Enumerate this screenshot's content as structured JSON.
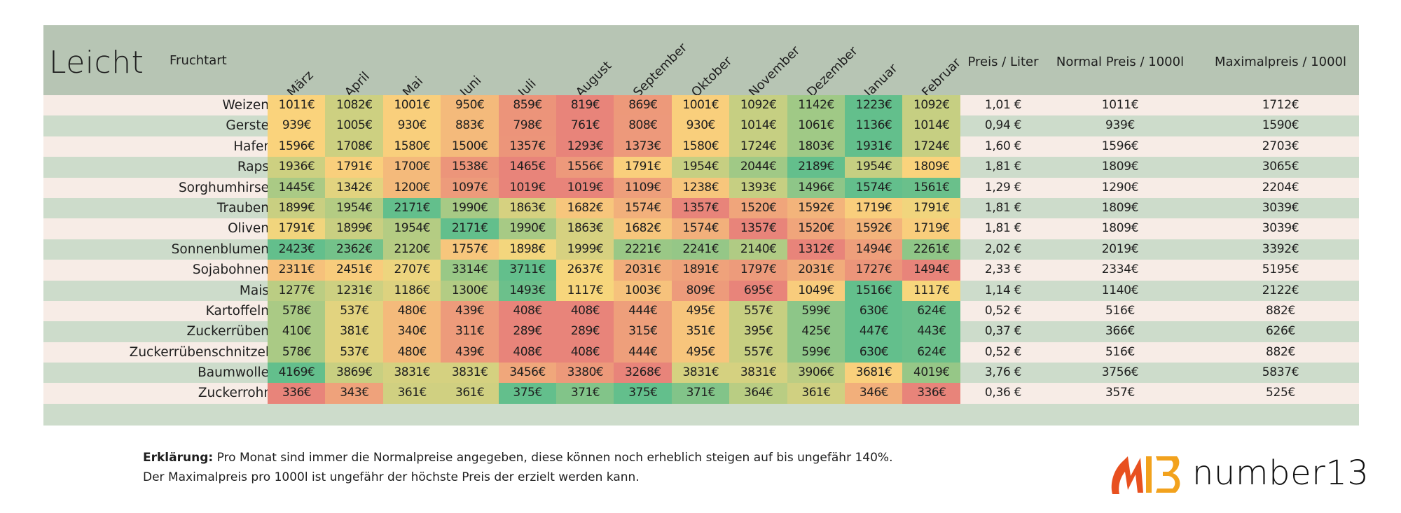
{
  "title": "Leicht",
  "crop_column_header": "Fruchtart",
  "months": [
    "März",
    "April",
    "Mai",
    "Juni",
    "Juli",
    "August",
    "September",
    "Oktober",
    "November",
    "Dezember",
    "Januar",
    "Februar"
  ],
  "extra_columns": [
    "Preis / Liter",
    "Normal Preis / 1000l",
    "Maximalpreis / 1000l"
  ],
  "rows": [
    {
      "crop": "Weizen",
      "prices": [
        "1011€",
        "1082€",
        "1001€",
        "950€",
        "859€",
        "819€",
        "869€",
        "1001€",
        "1092€",
        "1142€",
        "1223€",
        "1092€"
      ],
      "price_per_liter": "1,01 €",
      "normal_price": "1011€",
      "max_price": "1712€"
    },
    {
      "crop": "Gerste",
      "prices": [
        "939€",
        "1005€",
        "930€",
        "883€",
        "798€",
        "761€",
        "808€",
        "930€",
        "1014€",
        "1061€",
        "1136€",
        "1014€"
      ],
      "price_per_liter": "0,94 €",
      "normal_price": "939€",
      "max_price": "1590€"
    },
    {
      "crop": "Hafer",
      "prices": [
        "1596€",
        "1708€",
        "1580€",
        "1500€",
        "1357€",
        "1293€",
        "1373€",
        "1580€",
        "1724€",
        "1803€",
        "1931€",
        "1724€"
      ],
      "price_per_liter": "1,60 €",
      "normal_price": "1596€",
      "max_price": "2703€"
    },
    {
      "crop": "Raps",
      "prices": [
        "1936€",
        "1791€",
        "1700€",
        "1538€",
        "1465€",
        "1556€",
        "1791€",
        "1954€",
        "2044€",
        "2189€",
        "1954€",
        "1809€"
      ],
      "price_per_liter": "1,81 €",
      "normal_price": "1809€",
      "max_price": "3065€"
    },
    {
      "crop": "Sorghumhirse",
      "prices": [
        "1445€",
        "1342€",
        "1200€",
        "1097€",
        "1019€",
        "1019€",
        "1109€",
        "1238€",
        "1393€",
        "1496€",
        "1574€",
        "1561€"
      ],
      "price_per_liter": "1,29 €",
      "normal_price": "1290€",
      "max_price": "2204€"
    },
    {
      "crop": "Trauben",
      "prices": [
        "1899€",
        "1954€",
        "2171€",
        "1990€",
        "1863€",
        "1682€",
        "1574€",
        "1357€",
        "1520€",
        "1592€",
        "1719€",
        "1791€"
      ],
      "price_per_liter": "1,81 €",
      "normal_price": "1809€",
      "max_price": "3039€"
    },
    {
      "crop": "Oliven",
      "prices": [
        "1791€",
        "1899€",
        "1954€",
        "2171€",
        "1990€",
        "1863€",
        "1682€",
        "1574€",
        "1357€",
        "1520€",
        "1592€",
        "1719€"
      ],
      "price_per_liter": "1,81 €",
      "normal_price": "1809€",
      "max_price": "3039€"
    },
    {
      "crop": "Sonnenblumen",
      "prices": [
        "2423€",
        "2362€",
        "2120€",
        "1757€",
        "1898€",
        "1999€",
        "2221€",
        "2241€",
        "2140€",
        "1312€",
        "1494€",
        "2261€"
      ],
      "price_per_liter": "2,02 €",
      "normal_price": "2019€",
      "max_price": "3392€"
    },
    {
      "crop": "Sojabohnen",
      "prices": [
        "2311€",
        "2451€",
        "2707€",
        "3314€",
        "3711€",
        "2637€",
        "2031€",
        "1891€",
        "1797€",
        "2031€",
        "1727€",
        "1494€"
      ],
      "price_per_liter": "2,33 €",
      "normal_price": "2334€",
      "max_price": "5195€"
    },
    {
      "crop": "Mais",
      "prices": [
        "1277€",
        "1231€",
        "1186€",
        "1300€",
        "1493€",
        "1117€",
        "1003€",
        "809€",
        "695€",
        "1049€",
        "1516€",
        "1117€"
      ],
      "price_per_liter": "1,14 €",
      "normal_price": "1140€",
      "max_price": "2122€"
    },
    {
      "crop": "Kartoffeln",
      "prices": [
        "578€",
        "537€",
        "480€",
        "439€",
        "408€",
        "408€",
        "444€",
        "495€",
        "557€",
        "599€",
        "630€",
        "624€"
      ],
      "price_per_liter": "0,52 €",
      "normal_price": "516€",
      "max_price": "882€"
    },
    {
      "crop": "Zuckerrüben",
      "prices": [
        "410€",
        "381€",
        "340€",
        "311€",
        "289€",
        "289€",
        "315€",
        "351€",
        "395€",
        "425€",
        "447€",
        "443€"
      ],
      "price_per_liter": "0,37 €",
      "normal_price": "366€",
      "max_price": "626€"
    },
    {
      "crop": "Zuckerrübenschnitzel",
      "prices": [
        "578€",
        "537€",
        "480€",
        "439€",
        "408€",
        "408€",
        "444€",
        "495€",
        "557€",
        "599€",
        "630€",
        "624€"
      ],
      "price_per_liter": "0,52 €",
      "normal_price": "516€",
      "max_price": "882€"
    },
    {
      "crop": "Baumwolle",
      "prices": [
        "4169€",
        "3869€",
        "3831€",
        "3831€",
        "3456€",
        "3380€",
        "3268€",
        "3831€",
        "3831€",
        "3906€",
        "3681€",
        "4019€"
      ],
      "price_per_liter": "3,76 €",
      "normal_price": "3756€",
      "max_price": "5837€"
    },
    {
      "crop": "Zuckerrohr",
      "prices": [
        "336€",
        "343€",
        "361€",
        "361€",
        "375€",
        "371€",
        "375€",
        "371€",
        "364€",
        "361€",
        "346€",
        "336€"
      ],
      "price_per_liter": "0,36 €",
      "normal_price": "357€",
      "max_price": "525€"
    }
  ],
  "heat_colors": {
    "low": "#e8847a",
    "mid": "#fbd77c",
    "high": "#63bf8c"
  },
  "footnote": {
    "bold_label": "Erklärung:",
    "line1": " Pro Monat sind immer die Normalpreise angegeben, diese können noch erheblich steigen auf bis ungefähr 140%.",
    "line2": "Der Maximalpreis pro 1000l ist ungefähr der höchste Preis der erzielt werden kann."
  },
  "logo": {
    "text": "number13",
    "mark_colors": [
      "#e8501f",
      "#f2a21d"
    ]
  }
}
